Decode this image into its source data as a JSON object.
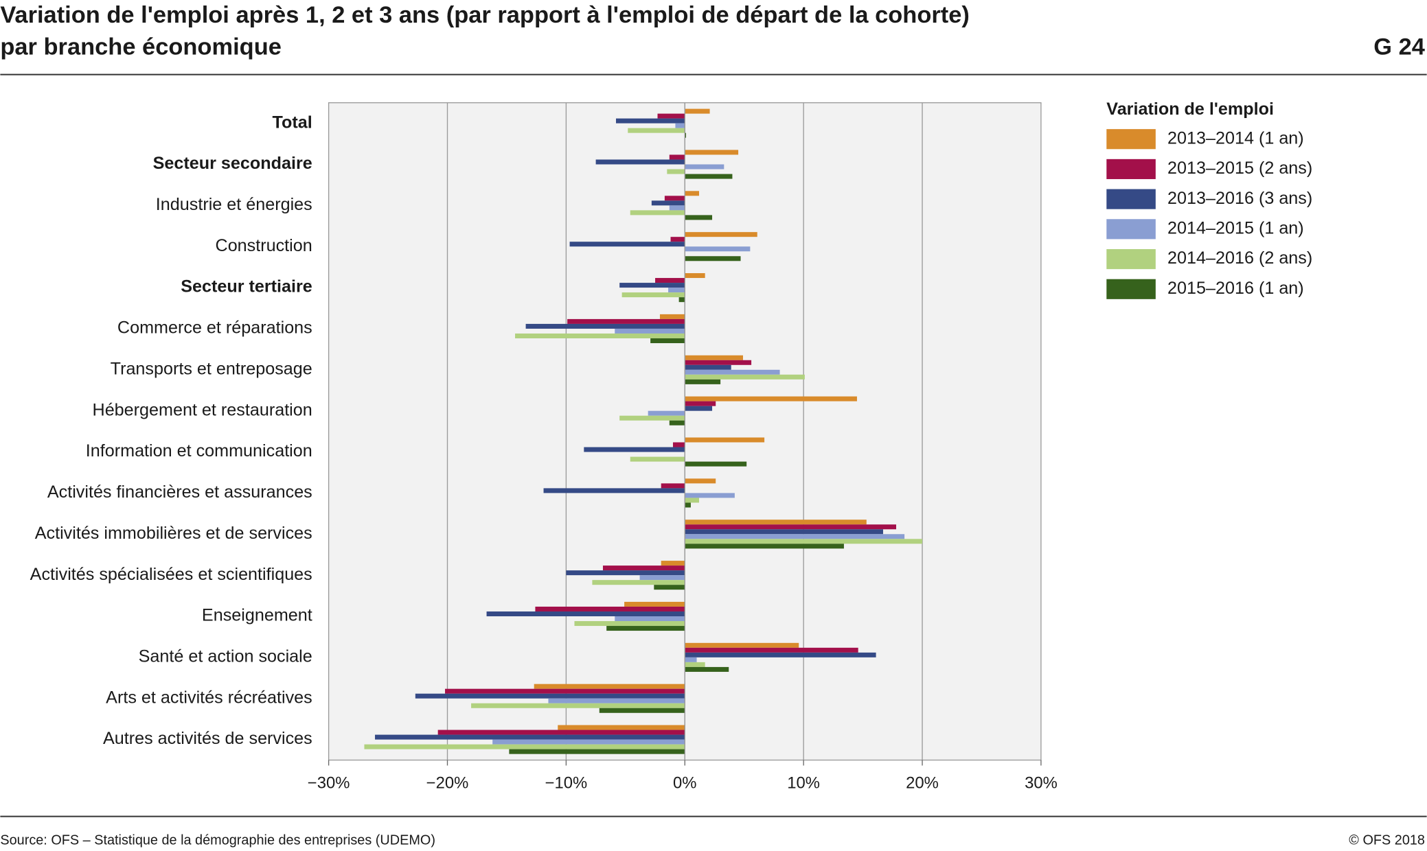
{
  "chart_data": {
    "type": "hbar",
    "title": "Variation de l'emploi après 1, 2 et 3 ans (par rapport à l'emploi de départ de la cohorte)",
    "subtitle": "par branche économique",
    "code": "G 24",
    "source": "Source: OFS – Statistique de la démographie des entreprises (UDEMO)",
    "copyright": "© OFS 2018",
    "legend_title": "Variation de l'emploi",
    "categories": [
      "Total",
      "Secteur secondaire",
      "Industrie et énergies",
      "Construction",
      "Secteur tertiaire",
      "Commerce et réparations",
      "Transports et entreposage",
      "Hébergement et restauration",
      "Information et communication",
      "Activités financières et assurances",
      "Activités immobilières et de services",
      "Activités spécialisées et scientifiques",
      "Enseignement",
      "Santé et action sociale",
      "Arts et activités récréatives",
      "Autres activités de services"
    ],
    "bold_categories": [
      0,
      1,
      4
    ],
    "series": [
      {
        "name": "2013–2014 (1 an)",
        "color": "#d98b2b",
        "values": [
          2.1,
          4.5,
          1.2,
          6.1,
          1.7,
          -2.1,
          4.9,
          14.5,
          6.7,
          2.6,
          15.3,
          -2.0,
          -5.1,
          9.6,
          -12.7,
          -10.7
        ]
      },
      {
        "name": "2013–2015 (2 ans)",
        "color": "#a3104a",
        "values": [
          -2.3,
          -1.3,
          -1.7,
          -1.2,
          -2.5,
          -9.9,
          5.6,
          2.6,
          -1.0,
          -2.0,
          17.8,
          -6.9,
          -12.6,
          14.6,
          -20.2,
          -20.8
        ]
      },
      {
        "name": "2013–2016 (3 ans)",
        "color": "#354a86",
        "values": [
          -5.8,
          -7.5,
          -2.8,
          -9.7,
          -5.5,
          -13.4,
          3.9,
          2.3,
          -8.5,
          -11.9,
          16.7,
          -10.0,
          -16.7,
          16.1,
          -22.7,
          -26.1
        ]
      },
      {
        "name": "2014–2015 (1 an)",
        "color": "#8a9ed2",
        "values": [
          -0.8,
          3.3,
          -1.3,
          5.5,
          -1.4,
          -5.9,
          8.0,
          -3.1,
          0,
          4.2,
          18.5,
          -3.8,
          -5.9,
          1.0,
          -11.5,
          -16.2
        ]
      },
      {
        "name": "2014–2016 (2 ans)",
        "color": "#b1d17f",
        "values": [
          -4.8,
          -1.5,
          -4.6,
          0,
          -5.3,
          -14.3,
          10.1,
          -5.5,
          -4.6,
          1.2,
          20.0,
          -7.8,
          -9.3,
          1.7,
          -18.0,
          -27.0
        ]
      },
      {
        "name": "2015–2016 (1 an)",
        "color": "#36621c",
        "values": [
          0.1,
          4.0,
          2.3,
          4.7,
          -0.5,
          -2.9,
          3.0,
          -1.3,
          5.2,
          0.5,
          13.4,
          -2.6,
          -6.6,
          3.7,
          -7.2,
          -14.8
        ]
      }
    ],
    "xlim": [
      -30,
      30
    ],
    "xticks": [
      {
        "value": -30,
        "label": "−30%"
      },
      {
        "value": -20,
        "label": "−20%"
      },
      {
        "value": -10,
        "label": "−10%"
      },
      {
        "value": 0,
        "label": "0%"
      },
      {
        "value": 10,
        "label": "10%"
      },
      {
        "value": 20,
        "label": "20%"
      },
      {
        "value": 30,
        "label": "30%"
      }
    ],
    "grid": true
  }
}
